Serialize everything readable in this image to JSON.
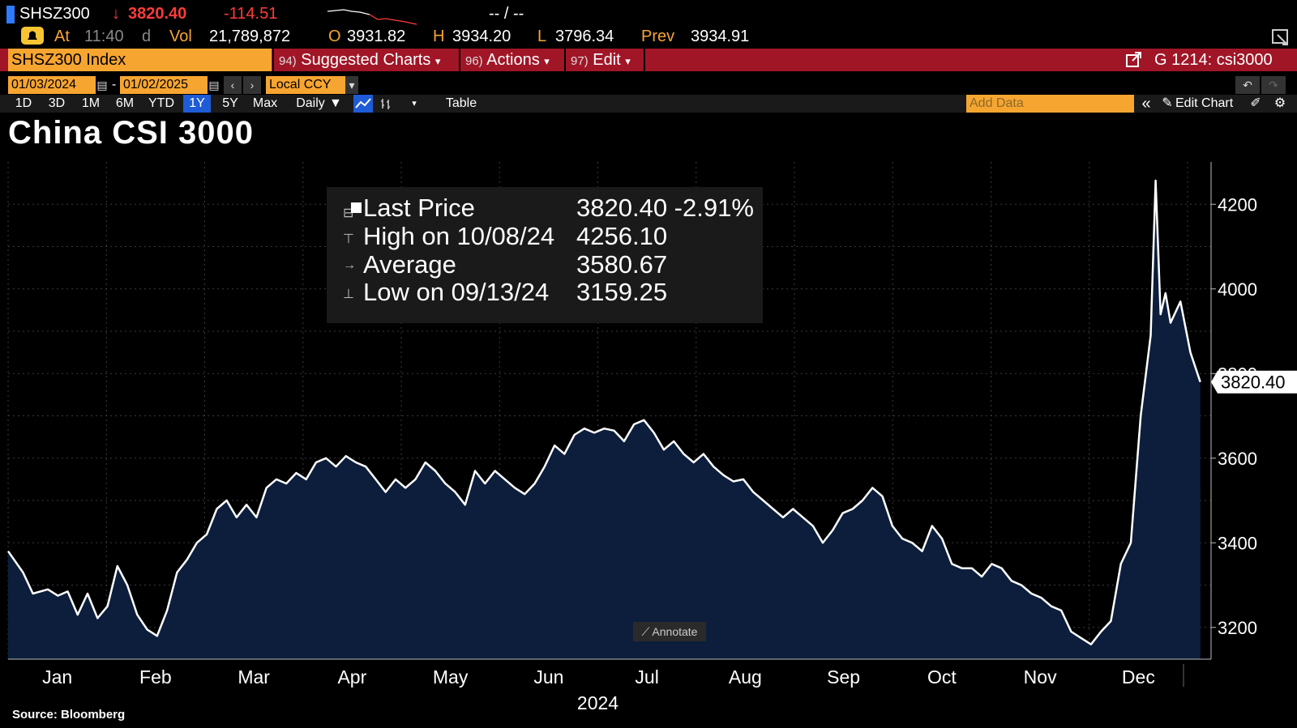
{
  "quote": {
    "ticker": "SHSZ300",
    "arrow": "↓",
    "last": "3820.40",
    "change": "-114.51",
    "range": "-- / --",
    "at_label": "At",
    "at_time": "11:40",
    "at_flag": "d",
    "vol_label": "Vol",
    "vol": "21,789,872",
    "open_label": "O",
    "open": "3931.82",
    "high_label": "H",
    "high": "3934.20",
    "low_label": "L",
    "low": "3796.34",
    "prev_label": "Prev",
    "prev": "3934.91"
  },
  "menubar": {
    "security": "SHSZ300 Index",
    "suggested_num": "94)",
    "suggested": "Suggested Charts",
    "actions_num": "96)",
    "actions": "Actions",
    "edit_num": "97)",
    "edit": "Edit",
    "chart_id": "G 1214: csi3000"
  },
  "datebar": {
    "start": "01/03/2024",
    "end": "01/02/2025",
    "dash": "-",
    "currency": "Local CCY"
  },
  "toolbar": {
    "periods": [
      "1D",
      "3D",
      "1M",
      "6M",
      "YTD",
      "1Y",
      "5Y",
      "Max"
    ],
    "active_period": "1Y",
    "frequency": "Daily",
    "table": "Table",
    "add_data_placeholder": "Add Data",
    "edit_chart": "Edit Chart"
  },
  "title": "China CSI 3000",
  "legend": {
    "rows": [
      {
        "label": "Last Price",
        "value": "3820.40  -2.91%"
      },
      {
        "label": "High on 10/08/24",
        "value": "4256.10"
      },
      {
        "label": "Average",
        "value": "3580.67"
      },
      {
        "label": "Low on 09/13/24",
        "value": "3159.25"
      }
    ]
  },
  "annotate": "Annotate",
  "source": "Source:  Bloomberg",
  "colors": {
    "fill": "#0c1e3c",
    "line": "#ffffff",
    "orange": "#f7a531",
    "menu_red": "#a01627"
  },
  "chart_data": {
    "type": "area",
    "title": "China CSI 3000",
    "xlabel": "2024",
    "ylabel": "",
    "ylim": [
      3125,
      4300
    ],
    "yticks": [
      3200,
      3400,
      3600,
      3800,
      4000,
      4200
    ],
    "month_labels": [
      "Jan",
      "Feb",
      "Mar",
      "Apr",
      "May",
      "Jun",
      "Jul",
      "Aug",
      "Sep",
      "Oct",
      "Nov",
      "Dec"
    ],
    "year_label": "2024",
    "last_label": "3820.40",
    "x_unit": "trading-day index (0 = 01/03/2024, ~242 = 01/02/2025)",
    "x_max": 242,
    "points": [
      [
        0,
        3380
      ],
      [
        3,
        3330
      ],
      [
        5,
        3280
      ],
      [
        8,
        3290
      ],
      [
        10,
        3275
      ],
      [
        12,
        3285
      ],
      [
        14,
        3230
      ],
      [
        16,
        3280
      ],
      [
        18,
        3222
      ],
      [
        20,
        3250
      ],
      [
        22,
        3345
      ],
      [
        24,
        3300
      ],
      [
        26,
        3230
      ],
      [
        28,
        3195
      ],
      [
        30,
        3180
      ],
      [
        32,
        3240
      ],
      [
        34,
        3330
      ],
      [
        36,
        3360
      ],
      [
        38,
        3400
      ],
      [
        40,
        3420
      ],
      [
        42,
        3480
      ],
      [
        44,
        3500
      ],
      [
        46,
        3460
      ],
      [
        48,
        3490
      ],
      [
        50,
        3460
      ],
      [
        52,
        3530
      ],
      [
        54,
        3550
      ],
      [
        56,
        3540
      ],
      [
        58,
        3565
      ],
      [
        60,
        3550
      ],
      [
        62,
        3590
      ],
      [
        64,
        3600
      ],
      [
        66,
        3580
      ],
      [
        68,
        3605
      ],
      [
        70,
        3590
      ],
      [
        72,
        3580
      ],
      [
        74,
        3550
      ],
      [
        76,
        3520
      ],
      [
        78,
        3550
      ],
      [
        80,
        3530
      ],
      [
        82,
        3550
      ],
      [
        84,
        3590
      ],
      [
        86,
        3570
      ],
      [
        88,
        3540
      ],
      [
        90,
        3520
      ],
      [
        92,
        3490
      ],
      [
        94,
        3570
      ],
      [
        96,
        3540
      ],
      [
        98,
        3570
      ],
      [
        100,
        3550
      ],
      [
        102,
        3530
      ],
      [
        104,
        3515
      ],
      [
        106,
        3540
      ],
      [
        108,
        3580
      ],
      [
        110,
        3630
      ],
      [
        112,
        3610
      ],
      [
        114,
        3655
      ],
      [
        116,
        3670
      ],
      [
        118,
        3660
      ],
      [
        120,
        3670
      ],
      [
        122,
        3665
      ],
      [
        124,
        3640
      ],
      [
        126,
        3680
      ],
      [
        128,
        3690
      ],
      [
        130,
        3660
      ],
      [
        132,
        3620
      ],
      [
        134,
        3640
      ],
      [
        136,
        3610
      ],
      [
        138,
        3590
      ],
      [
        140,
        3610
      ],
      [
        142,
        3580
      ],
      [
        144,
        3560
      ],
      [
        146,
        3545
      ],
      [
        148,
        3550
      ],
      [
        150,
        3520
      ],
      [
        152,
        3500
      ],
      [
        154,
        3480
      ],
      [
        156,
        3460
      ],
      [
        158,
        3480
      ],
      [
        160,
        3460
      ],
      [
        162,
        3440
      ],
      [
        164,
        3400
      ],
      [
        166,
        3430
      ],
      [
        168,
        3470
      ],
      [
        170,
        3480
      ],
      [
        172,
        3500
      ],
      [
        174,
        3530
      ],
      [
        176,
        3510
      ],
      [
        178,
        3440
      ],
      [
        180,
        3410
      ],
      [
        182,
        3400
      ],
      [
        184,
        3380
      ],
      [
        186,
        3440
      ],
      [
        188,
        3410
      ],
      [
        190,
        3350
      ],
      [
        192,
        3340
      ],
      [
        194,
        3340
      ],
      [
        196,
        3320
      ],
      [
        198,
        3350
      ],
      [
        200,
        3340
      ],
      [
        202,
        3310
      ],
      [
        204,
        3300
      ],
      [
        206,
        3280
      ],
      [
        208,
        3270
      ],
      [
        210,
        3250
      ],
      [
        212,
        3240
      ],
      [
        214,
        3190
      ],
      [
        216,
        3175
      ],
      [
        218,
        3160
      ],
      [
        220,
        3190
      ],
      [
        222,
        3215
      ],
      [
        224,
        3350
      ],
      [
        226,
        3400
      ],
      [
        228,
        3700
      ],
      [
        230,
        3890
      ],
      [
        231,
        4256
      ],
      [
        232,
        3940
      ],
      [
        233,
        3990
      ],
      [
        234,
        3920
      ],
      [
        236,
        3970
      ],
      [
        238,
        3850
      ],
      [
        240,
        3780
      ]
    ]
  }
}
